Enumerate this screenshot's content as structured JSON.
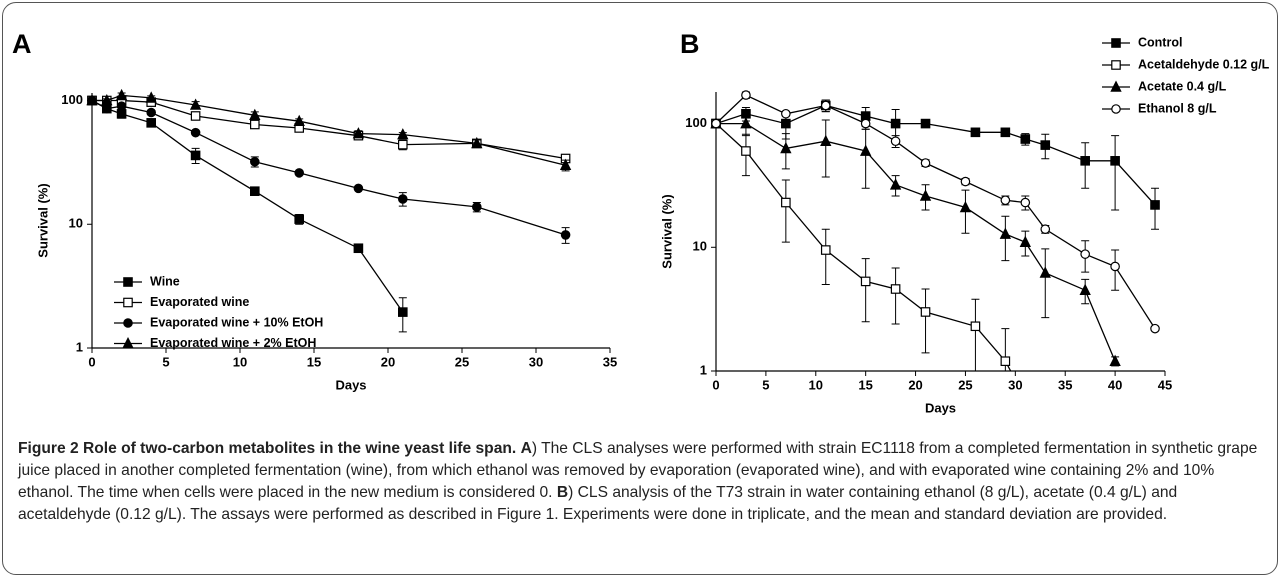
{
  "chart_data": [
    {
      "type": "line",
      "panel": "A",
      "xlabel": "Days",
      "ylabel": "Survival (%)",
      "log_y": true,
      "legend": "lower left",
      "xlim": [
        0,
        35
      ],
      "xticks": [
        0,
        5,
        10,
        15,
        20,
        25,
        30,
        35
      ],
      "ylim": [
        1,
        115
      ],
      "yticks": [
        1,
        10,
        100
      ],
      "series": [
        {
          "name": "Wine",
          "color": "#000000",
          "marker": "square",
          "x": [
            0,
            1,
            2,
            4,
            7,
            11,
            14,
            18,
            21
          ],
          "values": [
            100,
            86,
            78,
            66,
            36,
            18.5,
            11,
            6.4,
            1.95
          ],
          "errors": [
            3,
            5,
            6,
            3,
            5,
            1,
            1,
            0.3,
            0.6
          ]
        },
        {
          "name": "Evaporated wine",
          "color": "#000000",
          "marker": "square-open",
          "x": [
            0,
            1,
            2,
            4,
            7,
            11,
            14,
            18,
            21,
            26,
            32
          ],
          "values": [
            100,
            100,
            100,
            97,
            75,
            64,
            60,
            52,
            44,
            45,
            34
          ],
          "errors": [
            3,
            3,
            3,
            3,
            3,
            3,
            3,
            3,
            4,
            3,
            2
          ]
        },
        {
          "name": "Evaporated wine + 10% EtOH",
          "color": "#000000",
          "marker": "circle",
          "x": [
            0,
            1,
            2,
            4,
            7,
            11,
            14,
            18,
            21,
            26,
            32
          ],
          "values": [
            100,
            86,
            90,
            80,
            55,
            32,
            26,
            19.5,
            16,
            13.8,
            8.2
          ],
          "errors": [
            3,
            5,
            3,
            3,
            2,
            3,
            1,
            0.5,
            2,
            1.2,
            1.2
          ]
        },
        {
          "name": "Evaporated wine + 2% EtOH",
          "color": "#000000",
          "marker": "triangle",
          "x": [
            0,
            1,
            2,
            4,
            7,
            11,
            14,
            18,
            21,
            26,
            32
          ],
          "values": [
            100,
            100,
            110,
            105,
            92,
            76,
            68,
            54,
            53,
            45,
            30
          ],
          "errors": [
            3,
            3,
            5,
            4,
            6,
            5,
            3,
            3,
            2,
            3,
            3
          ]
        }
      ]
    },
    {
      "type": "line",
      "panel": "B",
      "xlabel": "Days",
      "ylabel": "Survival (%)",
      "log_y": true,
      "legend": "upper right",
      "xlim": [
        0,
        45
      ],
      "xticks": [
        0,
        5,
        10,
        15,
        20,
        25,
        30,
        35,
        40,
        45
      ],
      "ylim": [
        1,
        180
      ],
      "yticks": [
        1,
        10,
        100
      ],
      "series": [
        {
          "name": "Control",
          "color": "#000000",
          "marker": "square",
          "x": [
            0,
            3,
            7,
            11,
            15,
            18,
            21,
            26,
            29,
            31,
            33,
            37,
            40,
            44
          ],
          "values": [
            100,
            120,
            100,
            140,
            115,
            100,
            100,
            85,
            85,
            75,
            67,
            50,
            50,
            22
          ],
          "errors": [
            0,
            15,
            25,
            15,
            20,
            30,
            0,
            5,
            5,
            8,
            15,
            20,
            30,
            8
          ]
        },
        {
          "name": "Acetaldehyde 0.12 g/L",
          "color": "#000000",
          "marker": "square-open",
          "x": [
            0,
            3,
            7,
            11,
            15,
            18,
            21,
            26,
            29,
            30
          ],
          "values": [
            100,
            60,
            23,
            9.5,
            5.3,
            4.6,
            3,
            2.3,
            1.2,
            0.85
          ],
          "errors": [
            0,
            22,
            12,
            4.5,
            2.8,
            2.2,
            1.6,
            1.5,
            1,
            0
          ]
        },
        {
          "name": "Acetate 0.4 g/L",
          "color": "#000000",
          "marker": "triangle",
          "x": [
            0,
            3,
            7,
            11,
            15,
            18,
            21,
            25,
            29,
            31,
            33,
            37,
            40
          ],
          "values": [
            100,
            100,
            63,
            72,
            60,
            32,
            26,
            21,
            12.8,
            11,
            6.2,
            4.5,
            1.2
          ],
          "errors": [
            0,
            20,
            20,
            35,
            30,
            6,
            6,
            8,
            5,
            2.5,
            3.5,
            1,
            0.1
          ]
        },
        {
          "name": "Ethanol 8 g/L",
          "color": "#000000",
          "marker": "circle-open",
          "x": [
            0,
            3,
            7,
            11,
            15,
            18,
            21,
            25,
            29,
            31,
            33,
            37,
            40,
            44
          ],
          "values": [
            100,
            170,
            120,
            140,
            100,
            72,
            48,
            34,
            24,
            23,
            14,
            8.8,
            7,
            2.2
          ],
          "errors": [
            0,
            10,
            5,
            15,
            10,
            8,
            3,
            2,
            2,
            3,
            1,
            2.5,
            2.5,
            0
          ]
        }
      ]
    }
  ],
  "caption": {
    "title": "Figure 2 Role of two-carbon metabolites in the wine yeast life span.",
    "a_label": "A",
    "a_text": ") The CLS analyses were performed with strain EC1118 from a completed fermentation in synthetic grape juice placed in another completed fermentation (wine), from which ethanol was removed by evaporation (evaporated wine), and with evaporated wine containing 2% and 10% ethanol. The time when cells were placed in the new medium is considered 0.",
    "b_label": "B",
    "b_text": ") CLS analysis of the T73 strain in water containing ethanol (8 g/L), acetate (0.4 g/L) and acetaldehyde (0.12 g/L). The assays were performed as described in Figure 1. Experiments were done in triplicate, and the mean and standard deviation are provided."
  }
}
